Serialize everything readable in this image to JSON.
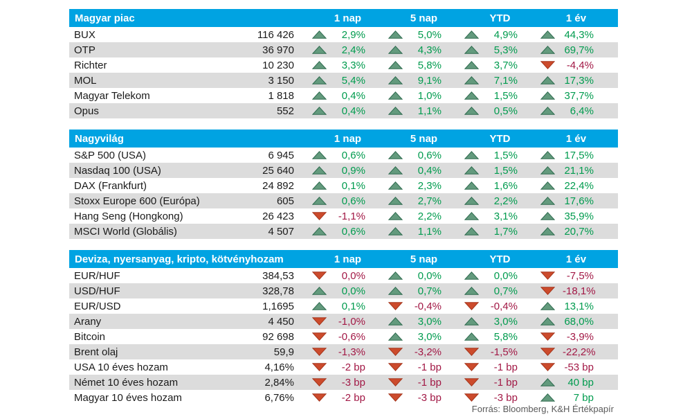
{
  "colors": {
    "header_bg": "#00a3e2",
    "row_alt": "#dcdcdc",
    "pos_text": "#009b4e",
    "neg_text": "#a21845",
    "pos_arrow": "#639a7d",
    "pos_arrow_border": "#2e6b4f",
    "neg_arrow": "#cc4b2c",
    "neg_arrow_border": "#a5351c",
    "text": "#1a1a1a",
    "footer_text": "#595959"
  },
  "columns": [
    "1 nap",
    "5 nap",
    "YTD",
    "1 év"
  ],
  "sections": [
    {
      "title": "Magyar piac",
      "rows": [
        {
          "name": "BUX",
          "value": "116 426",
          "cells": [
            {
              "dir": "up",
              "text": "2,9%"
            },
            {
              "dir": "up",
              "text": "5,0%"
            },
            {
              "dir": "up",
              "text": "4,9%"
            },
            {
              "dir": "up",
              "text": "44,3%"
            }
          ]
        },
        {
          "name": "OTP",
          "value": "36 970",
          "cells": [
            {
              "dir": "up",
              "text": "2,4%"
            },
            {
              "dir": "up",
              "text": "4,3%"
            },
            {
              "dir": "up",
              "text": "5,3%"
            },
            {
              "dir": "up",
              "text": "69,7%"
            }
          ]
        },
        {
          "name": "Richter",
          "value": "10 230",
          "cells": [
            {
              "dir": "up",
              "text": "3,3%"
            },
            {
              "dir": "up",
              "text": "5,8%"
            },
            {
              "dir": "up",
              "text": "3,7%"
            },
            {
              "dir": "down",
              "text": "-4,4%"
            }
          ]
        },
        {
          "name": "MOL",
          "value": "3 150",
          "cells": [
            {
              "dir": "up",
              "text": "5,4%"
            },
            {
              "dir": "up",
              "text": "9,1%"
            },
            {
              "dir": "up",
              "text": "7,1%"
            },
            {
              "dir": "up",
              "text": "17,3%"
            }
          ]
        },
        {
          "name": "Magyar Telekom",
          "value": "1 818",
          "cells": [
            {
              "dir": "up",
              "text": "0,4%"
            },
            {
              "dir": "up",
              "text": "1,0%"
            },
            {
              "dir": "up",
              "text": "1,5%"
            },
            {
              "dir": "up",
              "text": "37,7%"
            }
          ]
        },
        {
          "name": "Opus",
          "value": "552",
          "cells": [
            {
              "dir": "up",
              "text": "0,4%"
            },
            {
              "dir": "up",
              "text": "1,1%"
            },
            {
              "dir": "up",
              "text": "0,5%"
            },
            {
              "dir": "up",
              "text": "6,4%"
            }
          ]
        }
      ]
    },
    {
      "title": "Nagyvilág",
      "rows": [
        {
          "name": "S&P 500 (USA)",
          "value": "6 945",
          "cells": [
            {
              "dir": "up",
              "text": "0,6%"
            },
            {
              "dir": "up",
              "text": "0,6%"
            },
            {
              "dir": "up",
              "text": "1,5%"
            },
            {
              "dir": "up",
              "text": "17,5%"
            }
          ]
        },
        {
          "name": "Nasdaq 100 (USA)",
          "value": "25 640",
          "cells": [
            {
              "dir": "up",
              "text": "0,9%"
            },
            {
              "dir": "up",
              "text": "0,4%"
            },
            {
              "dir": "up",
              "text": "1,5%"
            },
            {
              "dir": "up",
              "text": "21,1%"
            }
          ]
        },
        {
          "name": "DAX (Frankfurt)",
          "value": "24 892",
          "cells": [
            {
              "dir": "up",
              "text": "0,1%"
            },
            {
              "dir": "up",
              "text": "2,3%"
            },
            {
              "dir": "up",
              "text": "1,6%"
            },
            {
              "dir": "up",
              "text": "22,4%"
            }
          ]
        },
        {
          "name": "Stoxx Europe 600 (Európa)",
          "value": "605",
          "cells": [
            {
              "dir": "up",
              "text": "0,6%"
            },
            {
              "dir": "up",
              "text": "2,7%"
            },
            {
              "dir": "up",
              "text": "2,2%"
            },
            {
              "dir": "up",
              "text": "17,6%"
            }
          ]
        },
        {
          "name": "Hang Seng (Hongkong)",
          "value": "26 423",
          "cells": [
            {
              "dir": "down",
              "text": "-1,1%"
            },
            {
              "dir": "up",
              "text": "2,2%"
            },
            {
              "dir": "up",
              "text": "3,1%"
            },
            {
              "dir": "up",
              "text": "35,9%"
            }
          ]
        },
        {
          "name": "MSCI World (Globális)",
          "value": "4 507",
          "cells": [
            {
              "dir": "up",
              "text": "0,6%"
            },
            {
              "dir": "up",
              "text": "1,1%"
            },
            {
              "dir": "up",
              "text": "1,7%"
            },
            {
              "dir": "up",
              "text": "20,7%"
            }
          ]
        }
      ]
    },
    {
      "title": "Deviza, nyersanyag, kripto, kötvényhozam",
      "rows": [
        {
          "name": "EUR/HUF",
          "value": "384,53",
          "cells": [
            {
              "dir": "down",
              "text": "0,0%"
            },
            {
              "dir": "up",
              "text": "0,0%"
            },
            {
              "dir": "up",
              "text": "0,0%"
            },
            {
              "dir": "down",
              "text": "-7,5%"
            }
          ]
        },
        {
          "name": "USD/HUF",
          "value": "328,78",
          "cells": [
            {
              "dir": "up",
              "text": "0,0%"
            },
            {
              "dir": "up",
              "text": "0,7%"
            },
            {
              "dir": "up",
              "text": "0,7%"
            },
            {
              "dir": "down",
              "text": "-18,1%"
            }
          ]
        },
        {
          "name": "EUR/USD",
          "value": "1,1695",
          "cells": [
            {
              "dir": "up",
              "text": "0,1%"
            },
            {
              "dir": "down",
              "text": "-0,4%"
            },
            {
              "dir": "down",
              "text": "-0,4%"
            },
            {
              "dir": "up",
              "text": "13,1%"
            }
          ]
        },
        {
          "name": "Arany",
          "value": "4 450",
          "cells": [
            {
              "dir": "down",
              "text": "-1,0%"
            },
            {
              "dir": "up",
              "text": "3,0%"
            },
            {
              "dir": "up",
              "text": "3,0%"
            },
            {
              "dir": "up",
              "text": "68,0%"
            }
          ]
        },
        {
          "name": "Bitcoin",
          "value": "92 698",
          "cells": [
            {
              "dir": "down",
              "text": "-0,6%"
            },
            {
              "dir": "up",
              "text": "3,0%"
            },
            {
              "dir": "up",
              "text": "5,8%"
            },
            {
              "dir": "down",
              "text": "-3,9%"
            }
          ]
        },
        {
          "name": "Brent olaj",
          "value": "59,9",
          "cells": [
            {
              "dir": "down",
              "text": "-1,3%"
            },
            {
              "dir": "down",
              "text": "-3,2%"
            },
            {
              "dir": "down",
              "text": "-1,5%"
            },
            {
              "dir": "down",
              "text": "-22,2%"
            }
          ]
        },
        {
          "name": "USA 10 éves hozam",
          "value": "4,16%",
          "cells": [
            {
              "dir": "down",
              "text": "-2 bp"
            },
            {
              "dir": "down",
              "text": "-1 bp"
            },
            {
              "dir": "down",
              "text": "-1 bp"
            },
            {
              "dir": "down",
              "text": "-53 bp"
            }
          ]
        },
        {
          "name": "Német 10 éves hozam",
          "value": "2,84%",
          "cells": [
            {
              "dir": "down",
              "text": "-3 bp"
            },
            {
              "dir": "down",
              "text": "-1 bp"
            },
            {
              "dir": "down",
              "text": "-1 bp"
            },
            {
              "dir": "up",
              "text": "40 bp"
            }
          ]
        },
        {
          "name": "Magyar 10 éves hozam",
          "value": "6,76%",
          "cells": [
            {
              "dir": "down",
              "text": "-2 bp"
            },
            {
              "dir": "down",
              "text": "-3 bp"
            },
            {
              "dir": "down",
              "text": "-3 bp"
            },
            {
              "dir": "up",
              "text": "7 bp"
            }
          ]
        }
      ]
    }
  ],
  "footer": "Forrás: Bloomberg, K&H Értékpapír"
}
